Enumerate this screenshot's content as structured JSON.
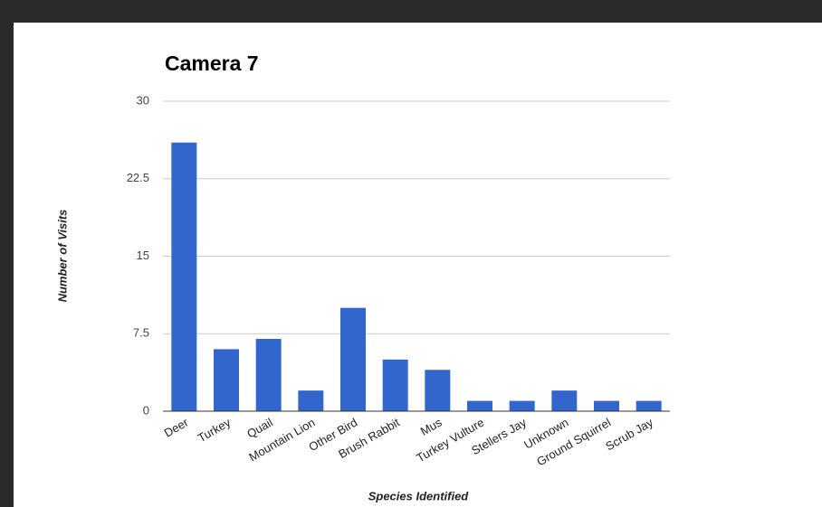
{
  "chart_data": {
    "type": "bar",
    "title": "Camera 7",
    "x_label": "Species Identified",
    "y_label": "Number of Visits",
    "categories": [
      "Deer",
      "Turkey",
      "Quail",
      "Mountain Lion",
      "Other Bird",
      "Brush Rabbit",
      "Mus",
      "Turkey Vulture",
      "Stellers Jay",
      "Unknown",
      "Ground Squirrel",
      "Scrub Jay"
    ],
    "values": [
      26,
      6,
      7,
      2,
      10,
      5,
      4,
      1,
      1,
      2,
      1,
      1
    ],
    "color": "#3366cc",
    "ylim": [
      0,
      30
    ],
    "yticks": [
      0,
      7.5,
      15,
      22.5,
      30
    ],
    "grid": true
  }
}
